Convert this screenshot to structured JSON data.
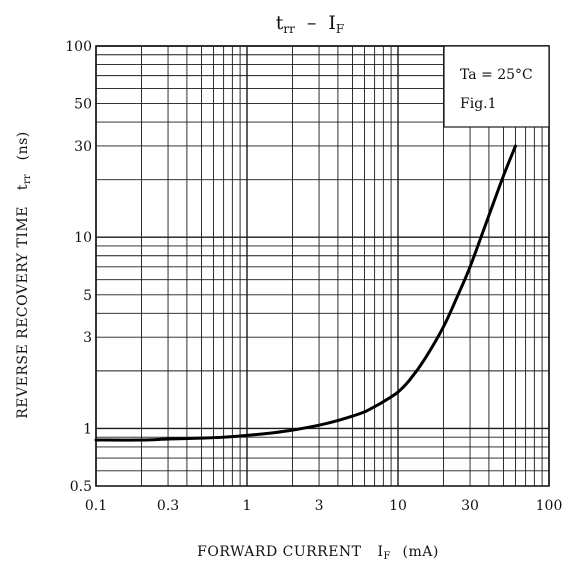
{
  "chart_data": {
    "type": "line",
    "title": {
      "left_main": "t",
      "left_sub": "rr",
      "dash": "–",
      "right_main": "I",
      "right_sub": "F"
    },
    "xlabel": {
      "prefix": "FORWARD CURRENT",
      "symbol": "I",
      "symbol_sub": "F",
      "unit": "(mA)"
    },
    "ylabel": {
      "text": "REVERSE RECOVERY TIME",
      "symbol": "t",
      "symbol_sub": "rr",
      "unit": "(ns)"
    },
    "x_scale": "log",
    "y_scale": "log",
    "xlim": [
      0.1,
      100
    ],
    "ylim": [
      0.5,
      100
    ],
    "x_tick_labels": [
      "0.1",
      "0.3",
      "1",
      "3",
      "10",
      "30",
      "100"
    ],
    "x_tick_values": [
      0.1,
      0.3,
      1,
      3,
      10,
      30,
      100
    ],
    "y_tick_labels": [
      "0.5",
      "1",
      "3",
      "5",
      "10",
      "30",
      "50",
      "100"
    ],
    "y_tick_values": [
      0.5,
      1,
      3,
      5,
      10,
      30,
      50,
      100
    ],
    "grid": true,
    "annotation": {
      "line1": "Ta = 25°C",
      "line2": "Fig.1"
    },
    "series": [
      {
        "x": [
          0.1,
          0.2,
          0.3,
          0.5,
          0.7,
          1,
          1.5,
          2,
          3,
          4,
          5,
          6,
          7,
          8,
          10,
          12,
          15,
          20,
          25,
          30,
          40,
          50,
          60
        ],
        "y": [
          0.87,
          0.87,
          0.88,
          0.89,
          0.9,
          0.92,
          0.95,
          0.98,
          1.04,
          1.1,
          1.16,
          1.22,
          1.3,
          1.38,
          1.55,
          1.8,
          2.3,
          3.4,
          5.0,
          7.0,
          13.0,
          21.0,
          30.0
        ]
      }
    ],
    "colors": {
      "background": "#ffffff",
      "grid": "#1a1a1a",
      "curve": "#000000",
      "text": "#111111"
    }
  }
}
